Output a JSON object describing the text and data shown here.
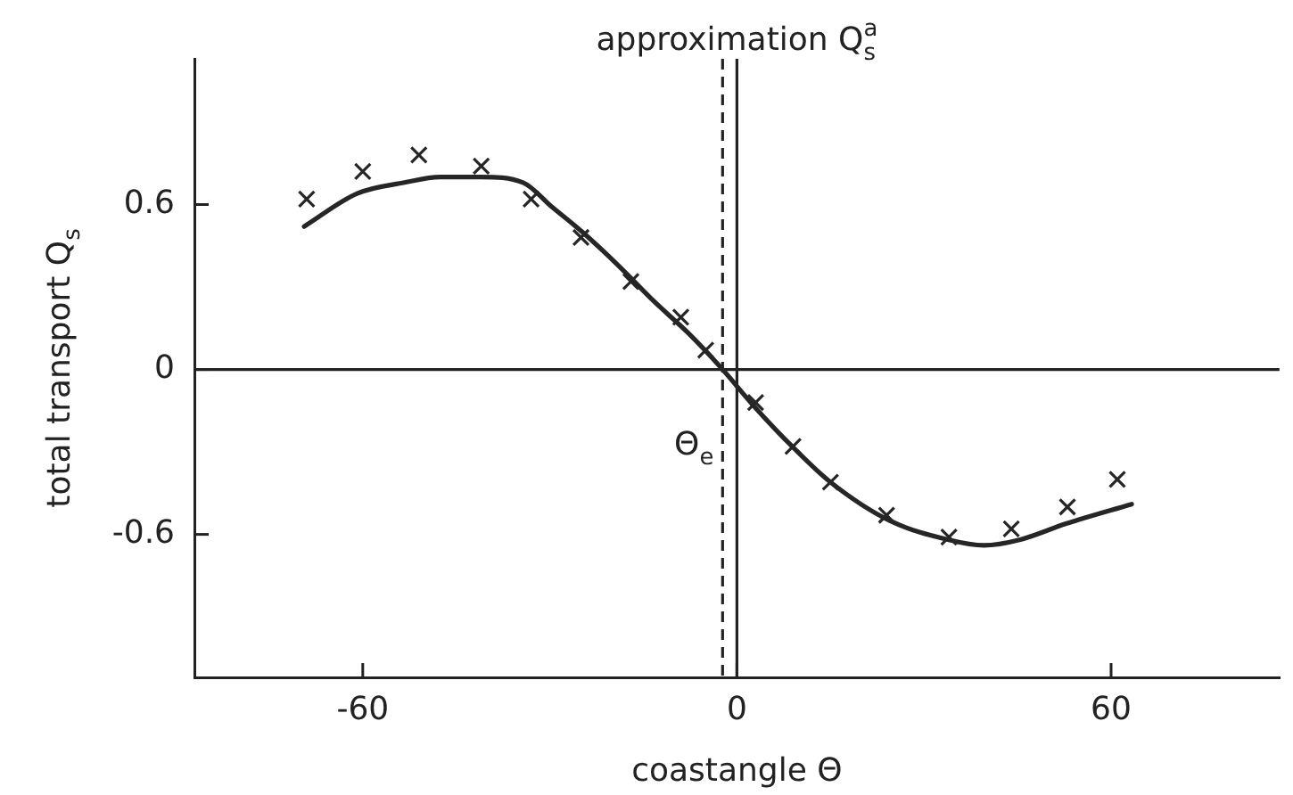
{
  "chart_data": {
    "type": "line",
    "title": "approximation Q$_{s}$$^{a}$",
    "xlabel": "coastangle Θ",
    "ylabel": "total transport Q$_{s}$",
    "series": [
      {
        "color": "#262626",
        "marker": "none",
        "line_style": "solid",
        "x": [
          -69.4,
          -60.9,
          -53.3,
          -47.6,
          -41,
          -34.3,
          -29.6,
          -24.8,
          -19.1,
          -13.4,
          -7.7,
          -2.3,
          2.6,
          9.3,
          15,
          24.5,
          34,
          39.6,
          45.3,
          52.9,
          63.3
        ],
        "values": [
          0.52,
          0.64,
          0.68,
          0.7,
          0.7,
          0.68,
          0.59,
          0.5,
          0.38,
          0.25,
          0.13,
          0,
          -0.13,
          -0.29,
          -0.41,
          -0.55,
          -0.62,
          -0.64,
          -0.62,
          -0.56,
          -0.49
        ]
      },
      {
        "type": "scatter",
        "color": "#262626",
        "marker": "cross",
        "x": [
          -69,
          -60,
          -51,
          -41,
          -33,
          -25,
          -17,
          -9,
          -5,
          3,
          9,
          15,
          24,
          34,
          44,
          53,
          61
        ],
        "values": [
          0.62,
          0.72,
          0.78,
          0.74,
          0.62,
          0.48,
          0.32,
          0.19,
          0.07,
          -0.12,
          -0.28,
          -0.41,
          -0.53,
          -0.61,
          -0.58,
          -0.5,
          -0.4
        ]
      }
    ],
    "xlim": [
      -87,
      87
    ],
    "xticks": [
      -60,
      0,
      60
    ],
    "ylim": [
      -1.12,
      1.13
    ],
    "yticks": [
      -0.6,
      0,
      0.6
    ],
    "ref_lines": [
      {
        "axis": "x",
        "value": 0
      },
      {
        "axis": "y",
        "value": 0
      },
      {
        "axis": "x",
        "value": -2.3,
        "label": "Θ$_{e}$",
        "line_style": "dashed"
      }
    ]
  }
}
